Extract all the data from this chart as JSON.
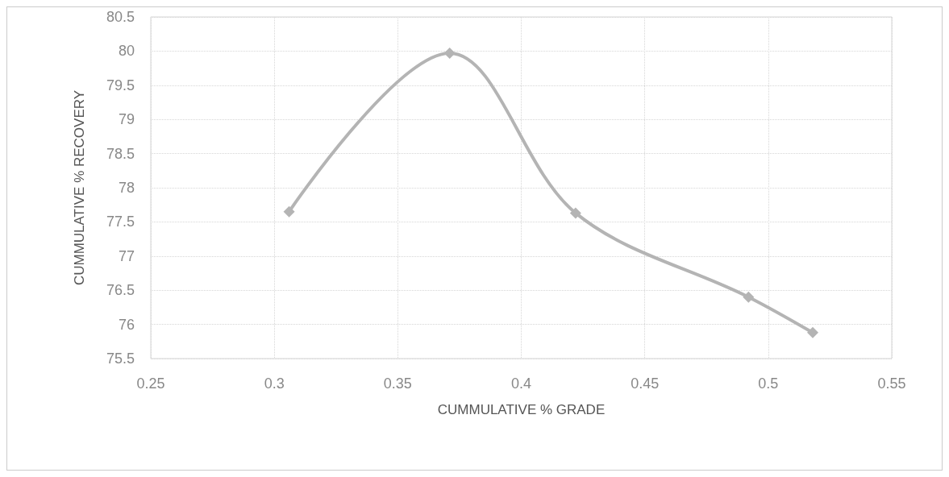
{
  "chart_data": {
    "type": "line",
    "xlabel": "CUMMULATIVE % GRADE",
    "ylabel": "CUMMULATIVE % RECOVERY",
    "x": [
      0.306,
      0.371,
      0.422,
      0.492,
      0.518
    ],
    "series": [
      {
        "color": "#b4b4b4",
        "values": [
          77.65,
          79.97,
          77.63,
          76.4,
          75.88
        ]
      }
    ],
    "xlim": [
      0.25,
      0.55
    ],
    "xticks": [
      0.25,
      0.3,
      0.35,
      0.4,
      0.45,
      0.5,
      0.55
    ],
    "ylim": [
      75.5,
      80.5
    ],
    "yticks": [
      75.5,
      76,
      76.5,
      77,
      77.5,
      78,
      78.5,
      79,
      79.5,
      80,
      80.5
    ],
    "grid": true,
    "marker": "diamond"
  }
}
